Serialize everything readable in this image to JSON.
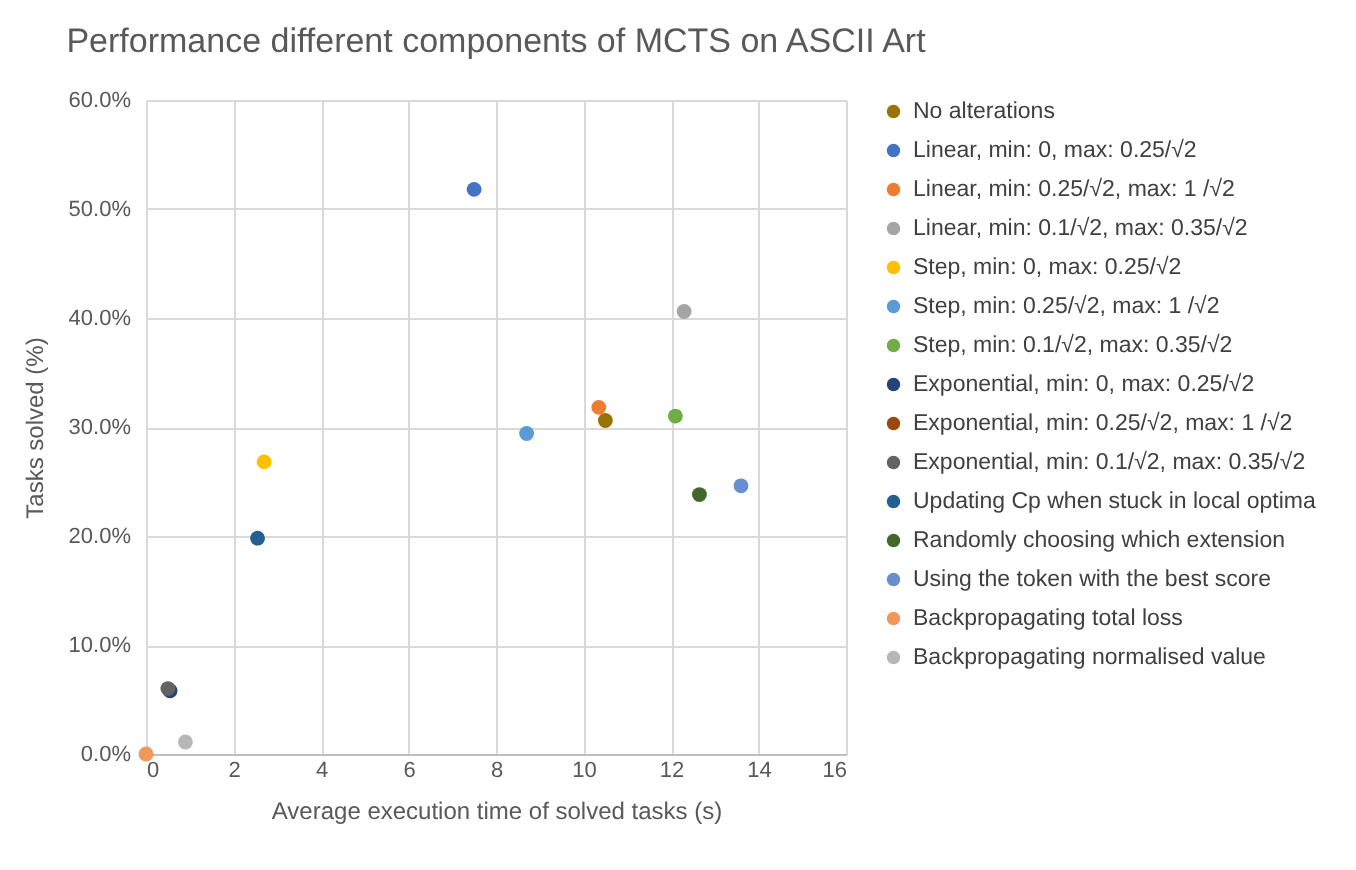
{
  "chart_data": {
    "type": "scatter",
    "title": "Performance different components of MCTS on ASCII Art",
    "xlabel": "Average execution time of solved tasks (s)",
    "ylabel": "Tasks solved (%)",
    "xlim": [
      0,
      16
    ],
    "xticks": [
      0,
      2,
      4,
      6,
      8,
      10,
      12,
      14,
      16
    ],
    "ylim": [
      0,
      60
    ],
    "yticks": [
      {
        "value": 0,
        "label": "0.0%"
      },
      {
        "value": 10,
        "label": "10.0%"
      },
      {
        "value": 20,
        "label": "20.0%"
      },
      {
        "value": 30,
        "label": "30.0%"
      },
      {
        "value": 40,
        "label": "40.0%"
      },
      {
        "value": 50,
        "label": "50.0%"
      },
      {
        "value": 60,
        "label": "60.0%"
      }
    ],
    "grid": true,
    "legend": "right",
    "marker": "circle",
    "series": [
      {
        "name": "No alterations",
        "color": "#997300",
        "x": [
          10.5
        ],
        "values": [
          30.6
        ]
      },
      {
        "name": "Linear, min: 0, max: 0.25/√2",
        "color": "#4472c4",
        "x": [
          7.5
        ],
        "values": [
          51.8
        ]
      },
      {
        "name": "Linear, min: 0.25/√2, max: 1 /√2",
        "color": "#ed7d31",
        "x": [
          10.35
        ],
        "values": [
          31.8
        ]
      },
      {
        "name": "Linear, min: 0.1/√2, max: 0.35/√2",
        "color": "#a5a5a5",
        "x": [
          12.3
        ],
        "values": [
          40.6
        ]
      },
      {
        "name": "Step, min: 0, max: 0.25/√2",
        "color": "#ffc000",
        "x": [
          2.7
        ],
        "values": [
          26.8
        ]
      },
      {
        "name": "Step, min: 0.25/√2, max: 1 /√2",
        "color": "#5b9bd5",
        "x": [
          8.7
        ],
        "values": [
          29.4
        ]
      },
      {
        "name": "Step, min: 0.1/√2, max: 0.35/√2",
        "color": "#70ad47",
        "x": [
          12.1
        ],
        "values": [
          31.0
        ]
      },
      {
        "name": "Exponential, min: 0, max: 0.25/√2",
        "color": "#264478",
        "x": [
          0.55
        ],
        "values": [
          5.8
        ]
      },
      {
        "name": "Exponential, min: 0.25/√2, max: 1 /√2",
        "color": "#9e480e",
        "x": [
          null
        ],
        "values": [
          null
        ]
      },
      {
        "name": "Exponential, min: 0.1/√2, max: 0.35/√2",
        "color": "#636363",
        "x": [
          0.5
        ],
        "values": [
          6.0
        ]
      },
      {
        "name": "Updating Cp when stuck in local optima",
        "color": "#255e91",
        "x": [
          2.55
        ],
        "values": [
          19.8
        ]
      },
      {
        "name": "Randomly choosing which extension",
        "color": "#43682b",
        "x": [
          12.65
        ],
        "values": [
          23.8
        ]
      },
      {
        "name": "Using the token with the best score",
        "color": "#698ed0",
        "x": [
          13.6
        ],
        "values": [
          24.6
        ]
      },
      {
        "name": "Backpropagating total loss",
        "color": "#f1975a",
        "x": [
          0
        ],
        "values": [
          0
        ]
      },
      {
        "name": "Backpropagating normalised value",
        "color": "#b7b7b7",
        "x": [
          0.9
        ],
        "values": [
          1.1
        ]
      }
    ]
  }
}
